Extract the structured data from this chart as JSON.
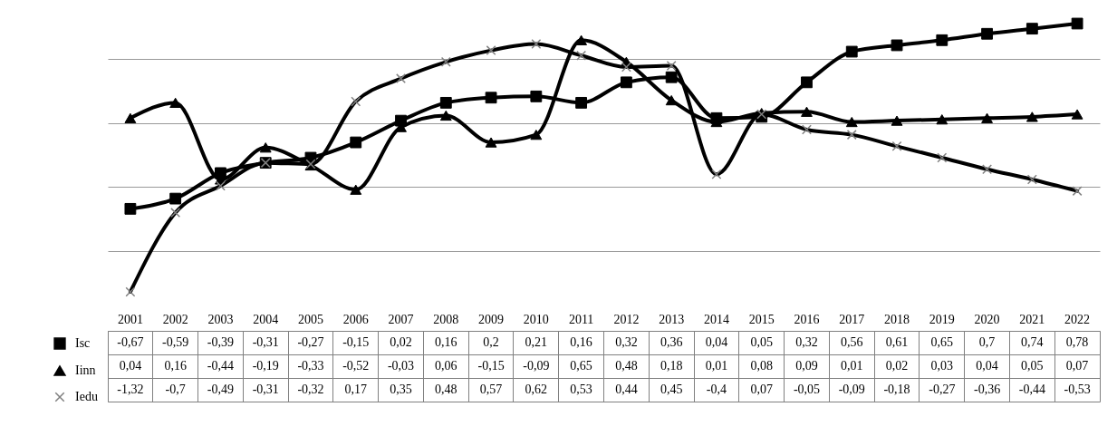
{
  "chart_data": {
    "type": "line",
    "categories": [
      "2001",
      "2002",
      "2003",
      "2004",
      "2005",
      "2006",
      "2007",
      "2008",
      "2009",
      "2010",
      "2011",
      "2012",
      "2013",
      "2014",
      "2015",
      "2016",
      "2017",
      "2018",
      "2019",
      "2020",
      "2021",
      "2022"
    ],
    "series": [
      {
        "name": "Isc",
        "color": "#000000",
        "marker": "square",
        "values": [
          -0.67,
          -0.59,
          -0.39,
          -0.31,
          -0.27,
          -0.15,
          0.02,
          0.16,
          0.2,
          0.21,
          0.16,
          0.32,
          0.36,
          0.04,
          0.05,
          0.32,
          0.56,
          0.61,
          0.65,
          0.7,
          0.74,
          0.78
        ],
        "value_labels": [
          "-0,67",
          "-0,59",
          "-0,39",
          "-0,31",
          "-0,27",
          "-0,15",
          "0,02",
          "0,16",
          "0,2",
          "0,21",
          "0,16",
          "0,32",
          "0,36",
          "0,04",
          "0,05",
          "0,32",
          "0,56",
          "0,61",
          "0,65",
          "0,7",
          "0,74",
          "0,78"
        ]
      },
      {
        "name": "Iinn",
        "color": "#000000",
        "marker": "triangle",
        "values": [
          0.04,
          0.16,
          -0.44,
          -0.19,
          -0.33,
          -0.52,
          -0.03,
          0.06,
          -0.15,
          -0.09,
          0.65,
          0.48,
          0.18,
          0.01,
          0.08,
          0.09,
          0.01,
          0.02,
          0.03,
          0.04,
          0.05,
          0.07
        ],
        "value_labels": [
          "0,04",
          "0,16",
          "-0,44",
          "-0,19",
          "-0,33",
          "-0,52",
          "-0,03",
          "0,06",
          "-0,15",
          "-0,09",
          "0,65",
          "0,48",
          "0,18",
          "0,01",
          "0,08",
          "0,09",
          "0,01",
          "0,02",
          "0,03",
          "0,04",
          "0,05",
          "0,07"
        ]
      },
      {
        "name": "Iedu",
        "color": "#000000",
        "marker": "cross",
        "values": [
          -1.32,
          -0.7,
          -0.49,
          -0.31,
          -0.32,
          0.17,
          0.35,
          0.48,
          0.57,
          0.62,
          0.53,
          0.44,
          0.45,
          -0.4,
          0.07,
          -0.05,
          -0.09,
          -0.18,
          -0.27,
          -0.36,
          -0.44,
          -0.53
        ],
        "value_labels": [
          "-1,32",
          "-0,7",
          "-0,49",
          "-0,31",
          "-0,32",
          "0,17",
          "0,35",
          "0,48",
          "0,57",
          "0,62",
          "0,53",
          "0,44",
          "0,45",
          "-0,4",
          "0,07",
          "-0,05",
          "-0,09",
          "-0,18",
          "-0,27",
          "-0,36",
          "-0,44",
          "-0,53"
        ]
      }
    ],
    "grid": "y",
    "legend": "bottom left",
    "tick_labels": "x",
    "line_style": "solid"
  }
}
